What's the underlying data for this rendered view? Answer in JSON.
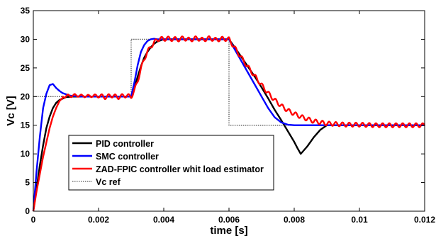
{
  "chart_data": {
    "type": "line",
    "title": "",
    "xlabel": "time [s]",
    "ylabel": "Vc [V]",
    "xlim": [
      0,
      0.012
    ],
    "ylim": [
      0,
      35
    ],
    "xticks": [
      0,
      0.002,
      0.004,
      0.006,
      0.008,
      0.01,
      0.012
    ],
    "xtick_labels": [
      "0",
      "0.002",
      "0.004",
      "0.006",
      "0.008",
      "0.01",
      "0.012"
    ],
    "yticks": [
      0,
      5,
      10,
      15,
      20,
      25,
      30,
      35
    ],
    "ytick_labels": [
      "0",
      "5",
      "10",
      "15",
      "20",
      "25",
      "30",
      "35"
    ],
    "grid": false,
    "legend_position": "bottom-left",
    "series": [
      {
        "name": "PID controller",
        "color": "#000000",
        "style": "solid",
        "x": [
          0,
          0.0001,
          0.0002,
          0.0003,
          0.0004,
          0.0005,
          0.0006,
          0.0007,
          0.0008,
          0.001,
          0.0012,
          0.0015,
          0.002,
          0.0025,
          0.003,
          0.0031,
          0.0032,
          0.0033,
          0.0034,
          0.0035,
          0.0036,
          0.0037,
          0.0038,
          0.004,
          0.0045,
          0.005,
          0.0055,
          0.006,
          0.0062,
          0.0065,
          0.0068,
          0.007,
          0.0072,
          0.0074,
          0.0076,
          0.0078,
          0.008,
          0.0081,
          0.0082,
          0.0084,
          0.0086,
          0.0088,
          0.009,
          0.0095,
          0.01,
          0.011,
          0.012
        ],
        "y": [
          0,
          4.0,
          8.0,
          11.5,
          14.5,
          16.5,
          18.0,
          18.9,
          19.4,
          19.9,
          20.0,
          20.0,
          20.0,
          20.0,
          20.0,
          21.5,
          23.5,
          25.3,
          26.8,
          27.8,
          28.6,
          29.2,
          29.6,
          30.0,
          30.0,
          30.0,
          30.0,
          30.0,
          28.4,
          25.9,
          23.4,
          21.6,
          19.7,
          17.7,
          15.9,
          14.0,
          12.1,
          11.0,
          10.0,
          11.3,
          12.9,
          14.2,
          15.0,
          15.0,
          15.0,
          15.0,
          15.0
        ]
      },
      {
        "name": "SMC controller",
        "color": "#0000ff",
        "style": "solid",
        "x": [
          0,
          0.0001,
          0.0002,
          0.0003,
          0.0004,
          0.0005,
          0.0006,
          0.0007,
          0.0008,
          0.0009,
          0.001,
          0.0011,
          0.0012,
          0.0015,
          0.002,
          0.0025,
          0.003,
          0.0031,
          0.0032,
          0.0033,
          0.0034,
          0.0035,
          0.0036,
          0.0037,
          0.0038,
          0.004,
          0.005,
          0.006,
          0.0062,
          0.0065,
          0.0068,
          0.007,
          0.0072,
          0.0074,
          0.0076,
          0.0078,
          0.008,
          0.009,
          0.01,
          0.011,
          0.012
        ],
        "y": [
          0,
          7.0,
          13.0,
          18.0,
          20.5,
          22.0,
          22.2,
          21.5,
          21.0,
          20.6,
          20.4,
          20.2,
          20.1,
          20.0,
          20.0,
          20.0,
          20.0,
          22.5,
          25.5,
          27.8,
          29.0,
          29.7,
          30.0,
          30.1,
          30.0,
          30.0,
          30.0,
          30.0,
          28.0,
          25.0,
          22.0,
          20.0,
          18.0,
          16.4,
          15.5,
          15.1,
          15.0,
          15.0,
          15.0,
          15.0,
          15.0
        ]
      },
      {
        "name": "ZAD-FPIC controller whit load estimator",
        "color": "#ff0000",
        "style": "solid",
        "x": [
          0,
          0.0001,
          0.0002,
          0.0003,
          0.0004,
          0.0005,
          0.0006,
          0.0007,
          0.0008,
          0.0009,
          0.001,
          0.0011,
          0.0012,
          0.0013,
          0.0014,
          0.0015,
          0.0016,
          0.0017,
          0.0018,
          0.0019,
          0.002,
          0.0022,
          0.0024,
          0.0026,
          0.0028,
          0.003,
          0.0031,
          0.0032,
          0.0033,
          0.0034,
          0.0035,
          0.0036,
          0.0037,
          0.0038,
          0.0039,
          0.004,
          0.0041,
          0.0042,
          0.0043,
          0.0044,
          0.0046,
          0.0048,
          0.005,
          0.0052,
          0.0054,
          0.0056,
          0.0058,
          0.006,
          0.0062,
          0.0065,
          0.0068,
          0.007,
          0.0072,
          0.0074,
          0.0076,
          0.0078,
          0.008,
          0.0082,
          0.0084,
          0.0086,
          0.0088,
          0.009,
          0.0093,
          0.0096,
          0.01,
          0.0105,
          0.011,
          0.0115,
          0.012
        ],
        "y": [
          0,
          3.5,
          6.5,
          9.5,
          12.0,
          14.5,
          16.5,
          18.0,
          19.2,
          19.8,
          20.3,
          19.9,
          20.4,
          20.0,
          20.4,
          19.9,
          20.3,
          19.9,
          20.3,
          20.0,
          20.2,
          19.9,
          20.2,
          19.9,
          20.2,
          20.0,
          21.0,
          22.8,
          24.8,
          26.6,
          27.8,
          28.7,
          29.4,
          29.9,
          30.2,
          29.9,
          30.3,
          29.9,
          30.2,
          29.9,
          30.2,
          29.9,
          30.2,
          29.9,
          30.2,
          29.9,
          30.1,
          30.0,
          28.3,
          25.8,
          23.5,
          22.0,
          20.6,
          19.4,
          18.4,
          17.6,
          17.0,
          16.5,
          16.1,
          15.7,
          15.5,
          15.3,
          15.2,
          15.1,
          15.1,
          15.0,
          15.0,
          15.0,
          15.0
        ],
        "ripple": 0.35
      },
      {
        "name": "Vc ref",
        "color": "#555555",
        "style": "dotted",
        "x": [
          0,
          0.003,
          0.003,
          0.006,
          0.006,
          0.012
        ],
        "y": [
          20,
          20,
          30,
          30,
          15,
          15
        ]
      }
    ]
  }
}
